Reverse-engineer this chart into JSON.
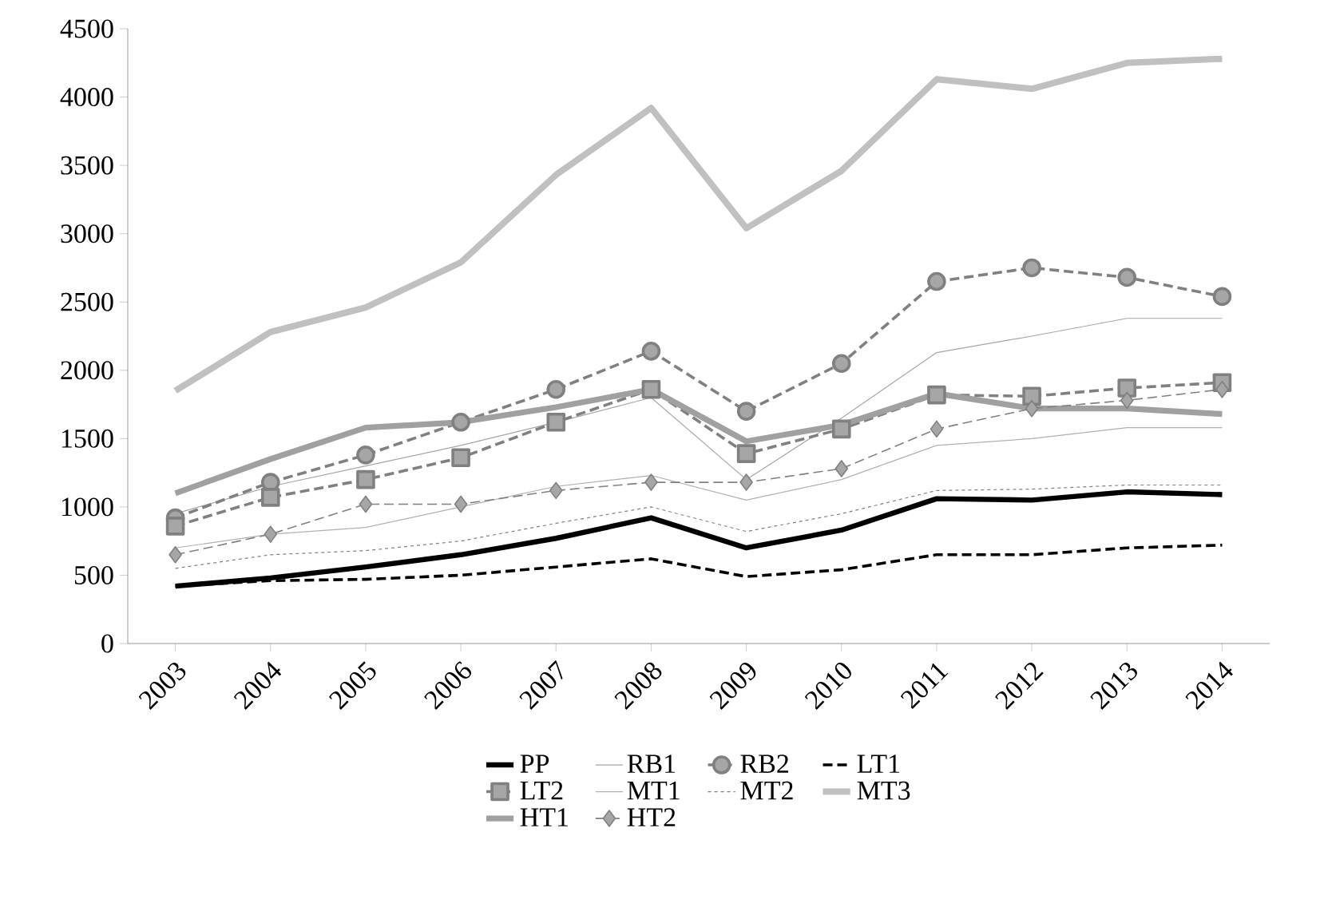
{
  "chart_data": {
    "type": "line",
    "categories": [
      "2003",
      "2004",
      "2005",
      "2006",
      "2007",
      "2008",
      "2009",
      "2010",
      "2011",
      "2012",
      "2013",
      "2014"
    ],
    "ylim": [
      0,
      4500
    ],
    "yticks": [
      0,
      500,
      1000,
      1500,
      2000,
      2500,
      3000,
      3500,
      4000,
      4500
    ],
    "grid": false,
    "legend": "bottom",
    "series": [
      {
        "name": "PP",
        "color": "#000000",
        "line_style": "solid",
        "marker": "none",
        "values": [
          420,
          480,
          560,
          650,
          770,
          920,
          700,
          830,
          1060,
          1050,
          1110,
          1090
        ]
      },
      {
        "name": "RB1",
        "color": "#a6a6a6",
        "line_style": "solid",
        "marker": "none",
        "values": [
          950,
          1150,
          1300,
          1450,
          1620,
          1800,
          1200,
          1650,
          2130,
          2250,
          2380,
          2380
        ]
      },
      {
        "name": "RB2",
        "color": "#808080",
        "line_style": "dashed",
        "marker": "circle",
        "values": [
          920,
          1180,
          1380,
          1620,
          1860,
          2140,
          1700,
          2050,
          2650,
          2750,
          2680,
          2540
        ]
      },
      {
        "name": "LT1",
        "color": "#000000",
        "line_style": "dashed",
        "marker": "none",
        "values": [
          420,
          460,
          470,
          500,
          560,
          620,
          490,
          540,
          650,
          650,
          700,
          720
        ]
      },
      {
        "name": "LT2",
        "color": "#808080",
        "line_style": "dashed",
        "marker": "square",
        "values": [
          860,
          1070,
          1200,
          1360,
          1620,
          1860,
          1390,
          1570,
          1820,
          1810,
          1870,
          1910
        ]
      },
      {
        "name": "MT1",
        "color": "#b0b0b0",
        "line_style": "solid",
        "marker": "none",
        "values": [
          700,
          800,
          850,
          1000,
          1150,
          1230,
          1050,
          1200,
          1450,
          1500,
          1580,
          1580
        ]
      },
      {
        "name": "MT2",
        "color": "#7f7f7f",
        "line_style": "dotted",
        "marker": "none",
        "values": [
          550,
          650,
          680,
          750,
          880,
          1000,
          820,
          950,
          1120,
          1130,
          1160,
          1160
        ]
      },
      {
        "name": "MT3",
        "color": "#c0c0c0",
        "line_style": "solid",
        "marker": "none",
        "values": [
          1850,
          2280,
          2460,
          2790,
          3430,
          3920,
          3040,
          3460,
          4130,
          4060,
          4250,
          4280
        ]
      },
      {
        "name": "HT1",
        "color": "#a0a0a0",
        "line_style": "solid",
        "marker": "none",
        "values": [
          1100,
          1350,
          1580,
          1620,
          1730,
          1860,
          1480,
          1600,
          1830,
          1720,
          1720,
          1680
        ]
      },
      {
        "name": "HT2",
        "color": "#808080",
        "line_style": "dashed",
        "marker": "diamond",
        "values": [
          650,
          800,
          1020,
          1020,
          1120,
          1180,
          1180,
          1280,
          1570,
          1720,
          1780,
          1860
        ]
      }
    ]
  }
}
